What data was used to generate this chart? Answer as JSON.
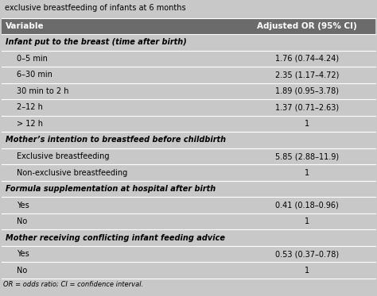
{
  "title": "exclusive breastfeeding of infants at 6 months",
  "col1_header": "Variable",
  "col2_header": "Adjusted OR (95% CI)",
  "header_bg": "#6b6b6b",
  "header_fg": "#ffffff",
  "table_bg": "#c8c8c8",
  "footnote": "OR = odds ratio; CI = confidence interval.",
  "rows": [
    {
      "label": "Infant put to the breast (time after birth)",
      "value": "",
      "bold": true,
      "italic": true,
      "indent": 0
    },
    {
      "label": "0–5 min",
      "value": "1.76 (0.74–4.24)",
      "bold": false,
      "italic": false,
      "indent": 1
    },
    {
      "label": "6–30 min",
      "value": "2.35 (1.17–4.72)",
      "bold": false,
      "italic": false,
      "indent": 1
    },
    {
      "label": "30 min to 2 h",
      "value": "1.89 (0.95–3.78)",
      "bold": false,
      "italic": false,
      "indent": 1
    },
    {
      "label": "2–12 h",
      "value": "1.37 (0.71–2.63)",
      "bold": false,
      "italic": false,
      "indent": 1
    },
    {
      "label": "> 12 h",
      "value": "1",
      "bold": false,
      "italic": false,
      "indent": 1
    },
    {
      "label": "Mother’s intention to breastfeed before childbirth",
      "value": "",
      "bold": true,
      "italic": true,
      "indent": 0
    },
    {
      "label": "Exclusive breastfeeding",
      "value": "5.85 (2.88–11.9)",
      "bold": false,
      "italic": false,
      "indent": 1
    },
    {
      "label": "Non-exclusive breastfeeding",
      "value": "1",
      "bold": false,
      "italic": false,
      "indent": 1
    },
    {
      "label": "Formula supplementation at hospital after birth",
      "value": "",
      "bold": true,
      "italic": true,
      "indent": 0
    },
    {
      "label": "Yes",
      "value": "0.41 (0.18–0.96)",
      "bold": false,
      "italic": false,
      "indent": 1
    },
    {
      "label": "No",
      "value": "1",
      "bold": false,
      "italic": false,
      "indent": 1
    },
    {
      "label": "Mother receiving conflicting infant feeding advice",
      "value": "",
      "bold": true,
      "italic": true,
      "indent": 0
    },
    {
      "label": "Yes",
      "value": "0.53 (0.37–0.78)",
      "bold": false,
      "italic": false,
      "indent": 1
    },
    {
      "label": "No",
      "value": "1",
      "bold": false,
      "italic": false,
      "indent": 1
    }
  ],
  "col_split": 0.635,
  "title_fontsize": 7.0,
  "header_fontsize": 7.5,
  "row_fontsize": 7.0,
  "footnote_fontsize": 6.0
}
